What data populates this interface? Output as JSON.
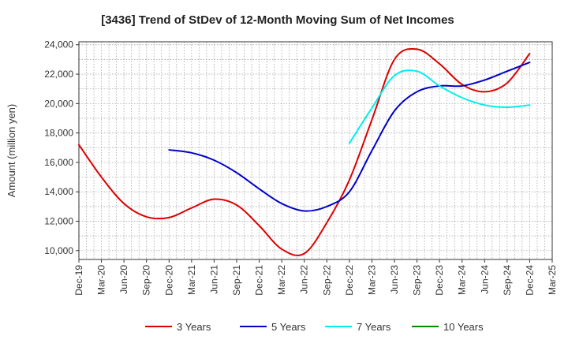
{
  "chart_data": {
    "type": "line",
    "title": "[3436]  Trend of StDev of 12-Month Moving Sum of Net Incomes",
    "ylabel": "Amount (million yen)",
    "xlabel": "",
    "ylim": [
      9400,
      24200
    ],
    "yticks": [
      10000,
      12000,
      14000,
      16000,
      18000,
      20000,
      22000,
      24000
    ],
    "ytick_labels": [
      "10,000",
      "12,000",
      "14,000",
      "16,000",
      "18,000",
      "20,000",
      "22,000",
      "24,000"
    ],
    "x_range": [
      "Dec-19",
      "Mar-25"
    ],
    "x_ticks": [
      "Dec-19",
      "Mar-20",
      "Jun-20",
      "Sep-20",
      "Dec-20",
      "Mar-21",
      "Jun-21",
      "Sep-21",
      "Dec-21",
      "Mar-22",
      "Jun-22",
      "Sep-22",
      "Dec-22",
      "Mar-23",
      "Jun-23",
      "Sep-23",
      "Dec-23",
      "Mar-24",
      "Jun-24",
      "Sep-24",
      "Dec-24",
      "Mar-25"
    ],
    "grid": true,
    "legend_position": "bottom",
    "series": [
      {
        "name": "3 Years",
        "color": "#dd0000",
        "x": [
          "Dec-19",
          "Mar-20",
          "Jun-20",
          "Sep-20",
          "Dec-20",
          "Mar-21",
          "Jun-21",
          "Sep-21",
          "Dec-21",
          "Mar-22",
          "Jun-22",
          "Sep-22",
          "Dec-22",
          "Mar-23",
          "Jun-23",
          "Sep-23",
          "Dec-23",
          "Mar-24",
          "Jun-24",
          "Sep-24",
          "Dec-24"
        ],
        "values": [
          17200,
          15000,
          13200,
          12300,
          12250,
          12900,
          13500,
          13100,
          11700,
          10100,
          9800,
          11900,
          14800,
          18900,
          23000,
          23700,
          22700,
          21300,
          20800,
          21400,
          23400
        ]
      },
      {
        "name": "5 Years",
        "color": "#0000cc",
        "x": [
          "Dec-20",
          "Mar-21",
          "Jun-21",
          "Sep-21",
          "Dec-21",
          "Mar-22",
          "Jun-22",
          "Sep-22",
          "Dec-22",
          "Mar-23",
          "Jun-23",
          "Sep-23",
          "Dec-23",
          "Mar-24",
          "Jun-24",
          "Sep-24",
          "Dec-24"
        ],
        "values": [
          16850,
          16650,
          16150,
          15300,
          14200,
          13200,
          12700,
          13000,
          14000,
          16800,
          19500,
          20800,
          21200,
          21200,
          21600,
          22200,
          22800
        ]
      },
      {
        "name": "7 Years",
        "color": "#00eeee",
        "x": [
          "Dec-22",
          "Mar-23",
          "Jun-23",
          "Sep-23",
          "Dec-23",
          "Mar-24",
          "Jun-24",
          "Sep-24",
          "Dec-24"
        ],
        "values": [
          17300,
          19700,
          21900,
          22200,
          21200,
          20400,
          19900,
          19750,
          19900
        ]
      },
      {
        "name": "10 Years",
        "color": "#008800",
        "x": [],
        "values": []
      }
    ]
  }
}
